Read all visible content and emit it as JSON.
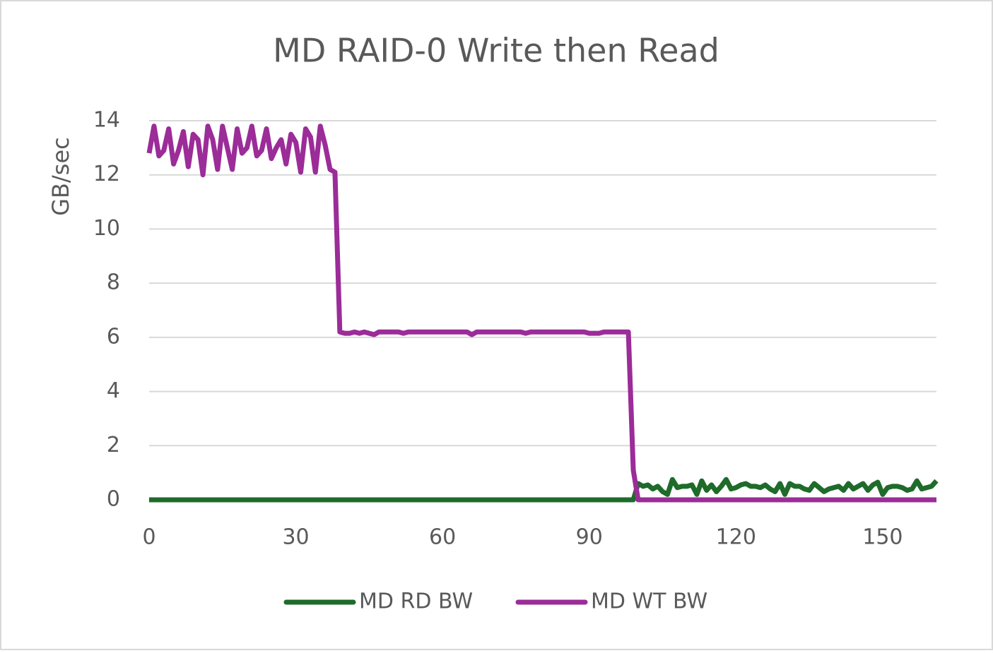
{
  "chart_data": {
    "type": "line",
    "title": "MD RAID-0 Write then Read",
    "y_label": "GB/sec",
    "x": [
      0,
      1,
      2,
      3,
      4,
      5,
      6,
      7,
      8,
      9,
      10,
      11,
      12,
      13,
      14,
      15,
      16,
      17,
      18,
      19,
      20,
      21,
      22,
      23,
      24,
      25,
      26,
      27,
      28,
      29,
      30,
      31,
      32,
      33,
      34,
      35,
      36,
      37,
      38,
      39,
      40,
      41,
      42,
      43,
      44,
      45,
      46,
      47,
      48,
      49,
      50,
      51,
      52,
      53,
      54,
      55,
      56,
      57,
      58,
      59,
      60,
      61,
      62,
      63,
      64,
      65,
      66,
      67,
      68,
      69,
      70,
      71,
      72,
      73,
      74,
      75,
      76,
      77,
      78,
      79,
      80,
      81,
      82,
      83,
      84,
      85,
      86,
      87,
      88,
      89,
      90,
      91,
      92,
      93,
      94,
      95,
      96,
      97,
      98,
      99,
      100,
      101,
      102,
      103,
      104,
      105,
      106,
      107,
      108,
      109,
      110,
      111,
      112,
      113,
      114,
      115,
      116,
      117,
      118,
      119,
      120,
      121,
      122,
      123,
      124,
      125,
      126,
      127,
      128,
      129,
      130,
      131,
      132,
      133,
      134,
      135,
      136,
      137,
      138,
      139,
      140,
      141,
      142,
      143,
      144,
      145,
      146,
      147,
      148,
      149,
      150,
      151,
      152,
      153,
      154,
      155,
      156,
      157,
      158,
      159,
      160,
      161
    ],
    "series": [
      {
        "name": "MD RD BW",
        "color": "#1e6b2a",
        "values": [
          0,
          0,
          0,
          0,
          0,
          0,
          0,
          0,
          0,
          0,
          0,
          0,
          0,
          0,
          0,
          0,
          0,
          0,
          0,
          0,
          0,
          0,
          0,
          0,
          0,
          0,
          0,
          0,
          0,
          0,
          0,
          0,
          0,
          0,
          0,
          0,
          0,
          0,
          0,
          0,
          0,
          0,
          0,
          0,
          0,
          0,
          0,
          0,
          0,
          0,
          0,
          0,
          0,
          0,
          0,
          0,
          0,
          0,
          0,
          0,
          0,
          0,
          0,
          0,
          0,
          0,
          0,
          0,
          0,
          0,
          0,
          0,
          0,
          0,
          0,
          0,
          0,
          0,
          0,
          0,
          0,
          0,
          0,
          0,
          0,
          0,
          0,
          0,
          0,
          0,
          0,
          0,
          0,
          0,
          0,
          0,
          0,
          0,
          0,
          0,
          0.6,
          0.5,
          0.55,
          0.4,
          0.5,
          0.3,
          0.2,
          0.75,
          0.45,
          0.5,
          0.5,
          0.55,
          0.2,
          0.7,
          0.35,
          0.55,
          0.3,
          0.5,
          0.75,
          0.4,
          0.45,
          0.55,
          0.6,
          0.5,
          0.5,
          0.45,
          0.55,
          0.4,
          0.3,
          0.6,
          0.2,
          0.6,
          0.5,
          0.5,
          0.4,
          0.35,
          0.6,
          0.45,
          0.3,
          0.4,
          0.45,
          0.5,
          0.35,
          0.6,
          0.4,
          0.5,
          0.6,
          0.35,
          0.55,
          0.65,
          0.2,
          0.45,
          0.5,
          0.5,
          0.45,
          0.35,
          0.4,
          0.7,
          0.4,
          0.45,
          0.5,
          0.7
        ]
      },
      {
        "name": "MD WT BW",
        "color": "#9b2c98",
        "values": [
          12.8,
          13.8,
          12.7,
          12.9,
          13.7,
          12.4,
          12.9,
          13.6,
          12.3,
          13.5,
          13.3,
          12.0,
          13.8,
          13.3,
          12.2,
          13.8,
          13.0,
          12.2,
          13.7,
          12.8,
          13.0,
          13.8,
          12.7,
          12.9,
          13.7,
          12.6,
          13.0,
          13.3,
          12.4,
          13.5,
          13.2,
          12.1,
          13.7,
          13.4,
          12.1,
          13.8,
          13.1,
          12.2,
          12.1,
          6.2,
          6.15,
          6.15,
          6.2,
          6.15,
          6.2,
          6.15,
          6.1,
          6.2,
          6.2,
          6.2,
          6.2,
          6.2,
          6.15,
          6.2,
          6.2,
          6.2,
          6.2,
          6.2,
          6.2,
          6.2,
          6.2,
          6.2,
          6.2,
          6.2,
          6.2,
          6.2,
          6.1,
          6.2,
          6.2,
          6.2,
          6.2,
          6.2,
          6.2,
          6.2,
          6.2,
          6.2,
          6.2,
          6.15,
          6.2,
          6.2,
          6.2,
          6.2,
          6.2,
          6.2,
          6.2,
          6.2,
          6.2,
          6.2,
          6.2,
          6.2,
          6.15,
          6.15,
          6.15,
          6.2,
          6.2,
          6.2,
          6.2,
          6.2,
          6.2,
          1.1,
          0,
          0,
          0,
          0,
          0,
          0,
          0,
          0,
          0,
          0,
          0,
          0,
          0,
          0,
          0,
          0,
          0,
          0,
          0,
          0,
          0,
          0,
          0,
          0,
          0,
          0,
          0,
          0,
          0,
          0,
          0,
          0,
          0,
          0,
          0,
          0,
          0,
          0,
          0,
          0,
          0,
          0,
          0,
          0,
          0,
          0,
          0,
          0,
          0,
          0,
          0,
          0,
          0,
          0,
          0,
          0,
          0,
          0,
          0,
          0,
          0,
          0
        ]
      }
    ],
    "xlim": [
      0,
      161
    ],
    "xticks": [
      0,
      30,
      60,
      90,
      120,
      150
    ],
    "ylim": [
      0,
      14
    ],
    "yticks": [
      0,
      2,
      4,
      6,
      8,
      10,
      12,
      14
    ],
    "grid": true,
    "legend": "bottom"
  }
}
